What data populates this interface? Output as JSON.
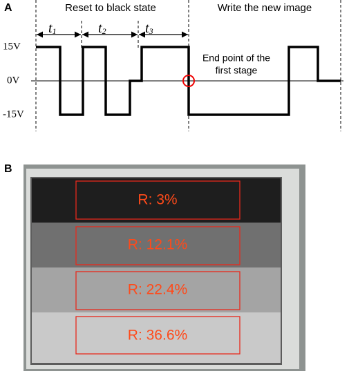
{
  "panel_a": {
    "label": "A",
    "phases": [
      "Reset to black state",
      "Write the new image"
    ],
    "intervals": [
      {
        "symbol": "t",
        "sub": "1"
      },
      {
        "symbol": "t",
        "sub": "2"
      },
      {
        "symbol": "t",
        "sub": "3"
      }
    ],
    "levels": [
      "15V",
      "0V",
      "-15V"
    ],
    "annotation": [
      "End point of the",
      "first stage"
    ]
  },
  "panel_b": {
    "label": "B",
    "regions": [
      "R: 3%",
      "R: 12.1%",
      "R: 22.4%",
      "R: 36.6%"
    ]
  }
}
